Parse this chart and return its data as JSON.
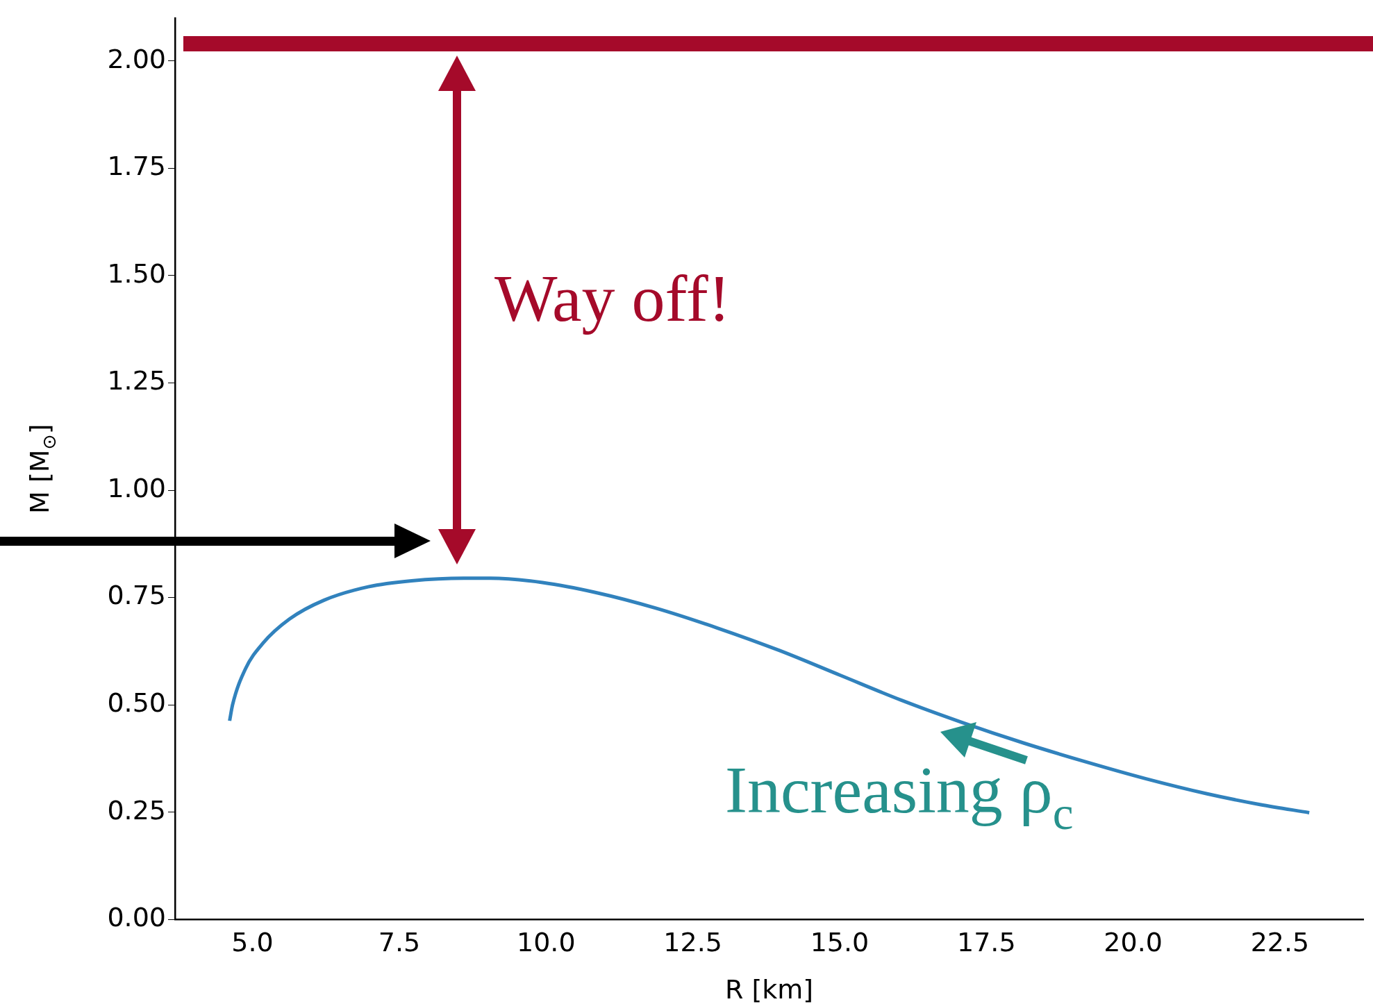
{
  "chart_data": {
    "type": "line",
    "xlabel": "R [km]",
    "ylabel": "M [M$_{⊙}$]",
    "xlim": [
      3.68,
      23.92
    ],
    "xticks": [
      {
        "value": 5,
        "label": "5.0"
      },
      {
        "value": 7.5,
        "label": "7.5"
      },
      {
        "value": 10,
        "label": "10.0"
      },
      {
        "value": 12.5,
        "label": "12.5"
      },
      {
        "value": 15,
        "label": "15.0"
      },
      {
        "value": 17.5,
        "label": "17.5"
      },
      {
        "value": 20,
        "label": "20.0"
      },
      {
        "value": 22.5,
        "label": "22.5"
      }
    ],
    "ylim": [
      0,
      2.1
    ],
    "yticks": [
      {
        "value": 0,
        "label": "0.00"
      },
      {
        "value": 0.25,
        "label": "0.25"
      },
      {
        "value": 0.5,
        "label": "0.50"
      },
      {
        "value": 0.75,
        "label": "0.75"
      },
      {
        "value": 1,
        "label": "1.00"
      },
      {
        "value": 1.25,
        "label": "1.25"
      },
      {
        "value": 1.5,
        "label": "1.50"
      },
      {
        "value": 1.75,
        "label": "1.75"
      },
      {
        "value": 2,
        "label": "2.00"
      }
    ],
    "x": [
      4.61,
      4.66,
      4.88,
      5.18,
      5.63,
      6.22,
      6.97,
      7.71,
      8.6,
      9.05,
      9.94,
      10.84,
      11.88,
      12.92,
      13.97,
      15.01,
      16.05,
      17.09,
      18.14,
      19.18,
      20.22,
      21.26,
      22.16,
      23.0
    ],
    "series": [
      {
        "color": "#3182bd",
        "values": [
          0.463,
          0.5,
          0.584,
          0.644,
          0.7,
          0.744,
          0.775,
          0.789,
          0.795,
          0.795,
          0.785,
          0.762,
          0.725,
          0.679,
          0.627,
          0.569,
          0.511,
          0.459,
          0.411,
          0.368,
          0.328,
          0.293,
          0.268,
          0.249
        ]
      }
    ],
    "ref_lines": [
      {
        "axis": "y",
        "value": 2.04,
        "color": "#a50a2a"
      }
    ],
    "annotations": [
      "Way off!",
      "Increasing ρ$_{c}$"
    ],
    "marker": "none",
    "line_style": "solid",
    "grid": false,
    "legend": false
  }
}
